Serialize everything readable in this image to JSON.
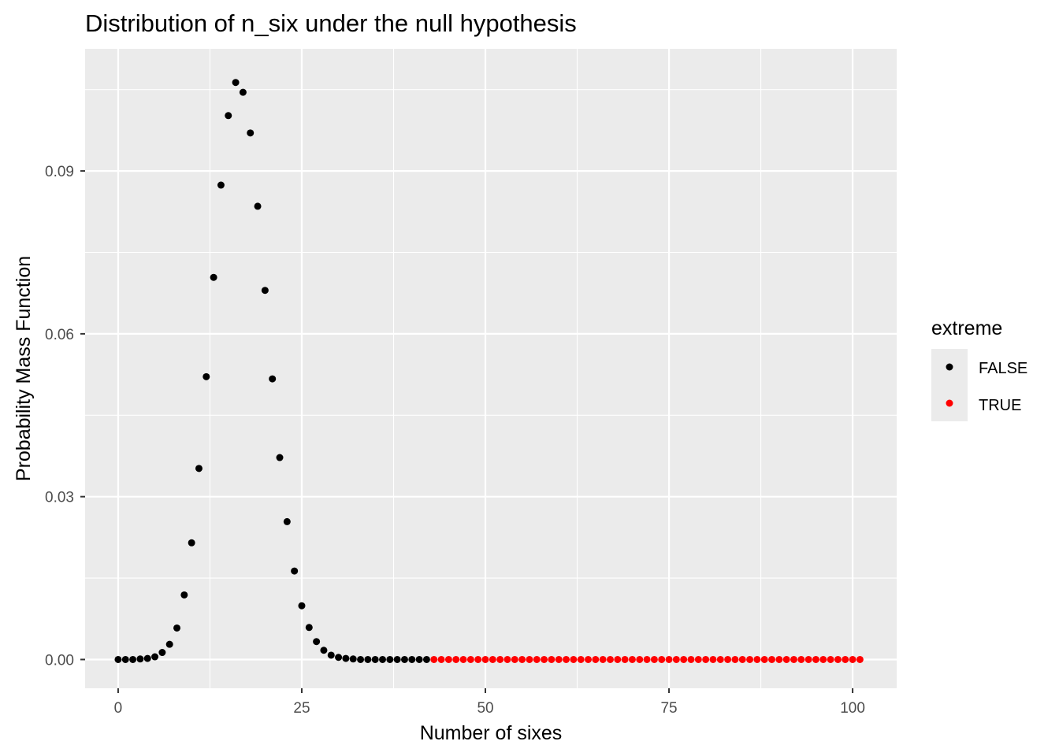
{
  "chart_data": {
    "type": "scatter",
    "title": "Distribution of n_six under the null hypothesis",
    "xlabel": "Number of sixes",
    "ylabel": "Probability Mass Function",
    "xlim": [
      -4.5,
      106
    ],
    "ylim": [
      -0.0053,
      0.1125
    ],
    "x_ticks": [
      0,
      25,
      50,
      75,
      100
    ],
    "y_ticks": [
      0.0,
      0.03,
      0.06,
      0.09
    ],
    "x_tick_labels": [
      "0",
      "25",
      "50",
      "75",
      "100"
    ],
    "y_tick_labels": [
      "0.00",
      "0.03",
      "0.06",
      "0.09"
    ],
    "grid": true,
    "panel_background": "#ebebeb",
    "legend": {
      "title": "extreme",
      "position": "right",
      "entries": [
        {
          "label": "FALSE",
          "color": "#000000"
        },
        {
          "label": "TRUE",
          "color": "#ff0000"
        }
      ]
    },
    "series": [
      {
        "name": "FALSE",
        "color": "#000000",
        "x": [
          0,
          1,
          2,
          3,
          4,
          5,
          6,
          7,
          8,
          9,
          10,
          11,
          12,
          13,
          14,
          15,
          16,
          17,
          18,
          19,
          20,
          21,
          22,
          23,
          24,
          25,
          26,
          27,
          28,
          29,
          30,
          31,
          32,
          33,
          34,
          35,
          36,
          37,
          38,
          39,
          40,
          41,
          42
        ],
        "y": [
          0.0,
          0.0,
          0.0,
          0.0001,
          0.0002,
          0.0005,
          0.0013,
          0.0028,
          0.0058,
          0.0119,
          0.0215,
          0.0352,
          0.0521,
          0.0704,
          0.0874,
          0.1002,
          0.1063,
          0.1045,
          0.097,
          0.0835,
          0.068,
          0.0517,
          0.0372,
          0.0254,
          0.0163,
          0.0099,
          0.0059,
          0.0033,
          0.0017,
          0.0008,
          0.0004,
          0.0002,
          0.0001,
          0.0,
          0.0,
          0.0,
          0.0,
          0.0,
          0.0,
          0.0,
          0.0,
          0.0,
          0.0
        ]
      },
      {
        "name": "TRUE",
        "color": "#ff0000",
        "x": [
          43,
          44,
          45,
          46,
          47,
          48,
          49,
          50,
          51,
          52,
          53,
          54,
          55,
          56,
          57,
          58,
          59,
          60,
          61,
          62,
          63,
          64,
          65,
          66,
          67,
          68,
          69,
          70,
          71,
          72,
          73,
          74,
          75,
          76,
          77,
          78,
          79,
          80,
          81,
          82,
          83,
          84,
          85,
          86,
          87,
          88,
          89,
          90,
          91,
          92,
          93,
          94,
          95,
          96,
          97,
          98,
          99,
          100,
          101
        ],
        "y": [
          0,
          0,
          0,
          0,
          0,
          0,
          0,
          0,
          0,
          0,
          0,
          0,
          0,
          0,
          0,
          0,
          0,
          0,
          0,
          0,
          0,
          0,
          0,
          0,
          0,
          0,
          0,
          0,
          0,
          0,
          0,
          0,
          0,
          0,
          0,
          0,
          0,
          0,
          0,
          0,
          0,
          0,
          0,
          0,
          0,
          0,
          0,
          0,
          0,
          0,
          0,
          0,
          0,
          0,
          0,
          0,
          0,
          0,
          0
        ]
      }
    ]
  }
}
